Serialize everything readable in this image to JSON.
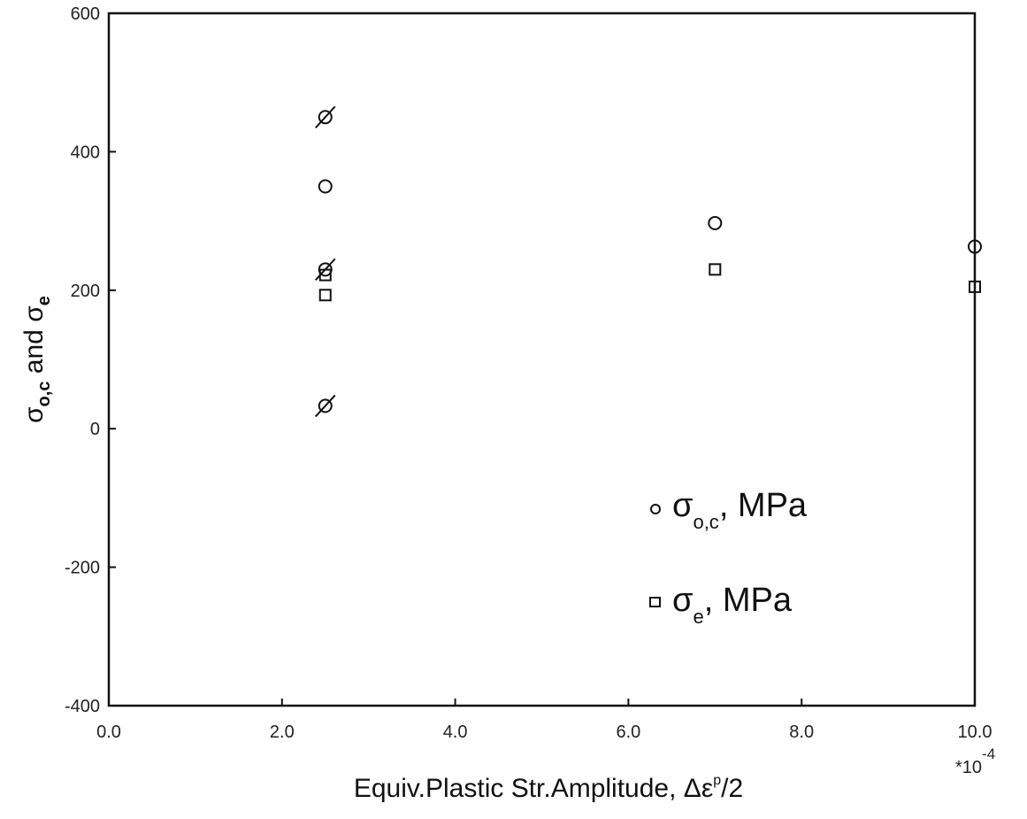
{
  "chart_data": {
    "type": "scatter",
    "xlabel": "Equiv.Plastic Str.Amplitude, Δε",
    "xlabel_superscript": "p",
    "xlabel_suffix": "/2",
    "x_multiplier": "*10",
    "x_multiplier_exponent": "-4",
    "ylabel_parts": [
      "σ",
      "o,c",
      " and ",
      "σ",
      "e"
    ],
    "xlim": [
      0,
      10
    ],
    "ylim": [
      -400,
      600
    ],
    "xticks": [
      0,
      2,
      4,
      6,
      8,
      10
    ],
    "xtick_labels": [
      "0.0",
      "2.0",
      "4.0",
      "6.0",
      "8.0",
      "10.0"
    ],
    "yticks": [
      -400,
      -200,
      0,
      200,
      400,
      600
    ],
    "ytick_labels": [
      "-400",
      "-200",
      "0",
      "200",
      "400",
      "600"
    ],
    "grid": false,
    "legend_position": "lower-right",
    "series": [
      {
        "name": "σo,c, MPa",
        "legend_symbol": "σ",
        "legend_subscript": "o,c",
        "legend_suffix": ", MPa",
        "marker": "circle",
        "points": [
          {
            "x": 2.5,
            "y": 450,
            "slashed": true
          },
          {
            "x": 2.5,
            "y": 350,
            "slashed": false
          },
          {
            "x": 2.5,
            "y": 230,
            "slashed": true
          },
          {
            "x": 2.5,
            "y": 33,
            "slashed": true
          },
          {
            "x": 7.0,
            "y": 297,
            "slashed": false
          },
          {
            "x": 10.0,
            "y": 263,
            "slashed": false
          }
        ]
      },
      {
        "name": "σe, MPa",
        "legend_symbol": "σ",
        "legend_subscript": "e",
        "legend_suffix": ", MPa",
        "marker": "square",
        "points": [
          {
            "x": 2.5,
            "y": 222
          },
          {
            "x": 2.5,
            "y": 193
          },
          {
            "x": 7.0,
            "y": 230
          },
          {
            "x": 10.0,
            "y": 205
          }
        ]
      }
    ]
  }
}
